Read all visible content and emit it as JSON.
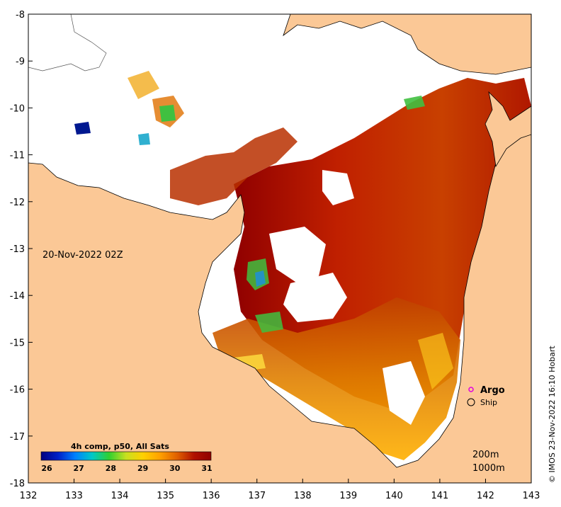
{
  "map": {
    "date_label": "20-Nov-2022 02Z",
    "credit": "© IMOS 23-Nov-2022 16:10 Hobart",
    "x_ticks": [
      "132",
      "133",
      "134",
      "135",
      "136",
      "137",
      "138",
      "139",
      "140",
      "141",
      "142",
      "143"
    ],
    "y_ticks": [
      "-8",
      "-9",
      "-10",
      "-11",
      "-12",
      "-13",
      "-14",
      "-15",
      "-16",
      "-17",
      "-18"
    ],
    "lon_range": [
      132,
      143
    ],
    "lat_range": [
      -18,
      -8
    ],
    "land_color": "#fbc896",
    "ocean_color": "#ffffff"
  },
  "colorbar": {
    "title": "4h comp, p50, All Sats",
    "labels": [
      "26",
      "27",
      "28",
      "29",
      "30",
      "31"
    ],
    "range": [
      26,
      31
    ],
    "colors": [
      "#000080",
      "#0020c8",
      "#0080ff",
      "#00c8c8",
      "#30d030",
      "#c8e020",
      "#ffd000",
      "#ffa000",
      "#e06000",
      "#b01000",
      "#900000"
    ]
  },
  "legend": {
    "argo_label": "Argo",
    "ship_label": "Ship",
    "depth1": "200m",
    "depth2": "1000m"
  }
}
